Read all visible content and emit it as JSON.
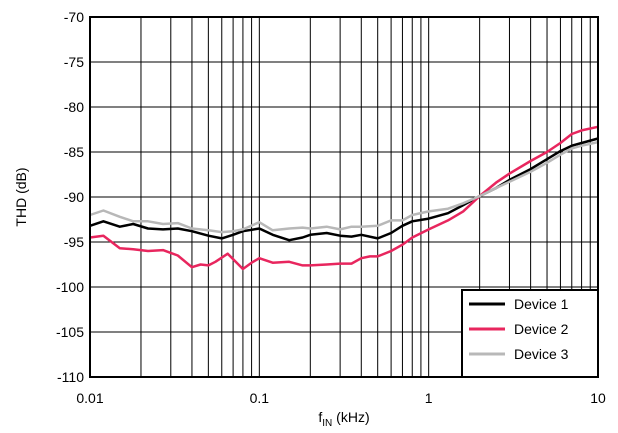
{
  "chart_data": {
    "type": "line",
    "xscale": "log",
    "xlim": [
      0.01,
      10
    ],
    "ylim": [
      -110,
      -70
    ],
    "xlabel": {
      "main": "f",
      "sub": "IN",
      "rest": " (kHz)"
    },
    "ylabel": "THD (dB)",
    "x_ticks": [
      {
        "value": 0.01,
        "label": "0.01"
      },
      {
        "value": 0.1,
        "label": "0.1"
      },
      {
        "value": 1,
        "label": "1"
      },
      {
        "value": 10,
        "label": "10"
      }
    ],
    "y_ticks": [
      {
        "value": -70,
        "label": "-70"
      },
      {
        "value": -75,
        "label": "-75"
      },
      {
        "value": -80,
        "label": "-80"
      },
      {
        "value": -85,
        "label": "-85"
      },
      {
        "value": -90,
        "label": "-90"
      },
      {
        "value": -95,
        "label": "-95"
      },
      {
        "value": -100,
        "label": "-100"
      },
      {
        "value": -105,
        "label": "-105"
      },
      {
        "value": -110,
        "label": "-110"
      }
    ],
    "grid": true,
    "legend_position": "bottom-right",
    "series": [
      {
        "name": "Device 1",
        "color": "#000000",
        "x": [
          0.01,
          0.012,
          0.015,
          0.018,
          0.022,
          0.027,
          0.033,
          0.04,
          0.05,
          0.06,
          0.07,
          0.08,
          0.1,
          0.12,
          0.15,
          0.18,
          0.2,
          0.25,
          0.3,
          0.35,
          0.4,
          0.5,
          0.6,
          0.7,
          0.8,
          1.0,
          1.3,
          1.6,
          2.0,
          2.5,
          3.0,
          4.0,
          5.0,
          6.0,
          7.0,
          8.0,
          10.0
        ],
        "y": [
          -93.2,
          -92.7,
          -93.3,
          -93.0,
          -93.5,
          -93.6,
          -93.5,
          -93.8,
          -94.3,
          -94.6,
          -94.2,
          -93.8,
          -93.5,
          -94.2,
          -94.8,
          -94.5,
          -94.2,
          -94.0,
          -94.3,
          -94.4,
          -94.2,
          -94.6,
          -94.0,
          -93.2,
          -92.7,
          -92.4,
          -91.8,
          -90.9,
          -89.9,
          -89.0,
          -88.1,
          -86.9,
          -85.8,
          -84.9,
          -84.3,
          -84.0,
          -83.5
        ]
      },
      {
        "name": "Device 2",
        "color": "#e8265e",
        "x": [
          0.01,
          0.012,
          0.015,
          0.018,
          0.022,
          0.027,
          0.033,
          0.04,
          0.045,
          0.05,
          0.055,
          0.065,
          0.07,
          0.08,
          0.09,
          0.1,
          0.12,
          0.15,
          0.18,
          0.2,
          0.25,
          0.3,
          0.35,
          0.4,
          0.45,
          0.5,
          0.6,
          0.7,
          0.8,
          1.0,
          1.3,
          1.6,
          2.0,
          2.5,
          3.0,
          4.0,
          5.0,
          6.0,
          7.0,
          8.0,
          10.0
        ],
        "y": [
          -94.5,
          -94.3,
          -95.7,
          -95.8,
          -96.0,
          -95.9,
          -96.5,
          -97.8,
          -97.5,
          -97.6,
          -97.2,
          -96.3,
          -96.9,
          -98.0,
          -97.3,
          -96.8,
          -97.3,
          -97.2,
          -97.6,
          -97.6,
          -97.5,
          -97.4,
          -97.4,
          -96.8,
          -96.6,
          -96.6,
          -96.0,
          -95.3,
          -94.5,
          -93.6,
          -92.6,
          -91.6,
          -89.9,
          -88.4,
          -87.4,
          -86.0,
          -85.0,
          -84.0,
          -83.0,
          -82.6,
          -82.2
        ]
      },
      {
        "name": "Device 3",
        "color": "#b8b8b8",
        "x": [
          0.01,
          0.012,
          0.015,
          0.018,
          0.022,
          0.027,
          0.033,
          0.04,
          0.05,
          0.06,
          0.07,
          0.08,
          0.1,
          0.12,
          0.15,
          0.18,
          0.2,
          0.25,
          0.3,
          0.35,
          0.4,
          0.5,
          0.6,
          0.7,
          0.8,
          1.0,
          1.3,
          1.6,
          2.0,
          2.5,
          3.0,
          4.0,
          5.0,
          6.0,
          7.0,
          8.0,
          10.0
        ],
        "y": [
          -92.0,
          -91.5,
          -92.2,
          -92.7,
          -92.7,
          -93.0,
          -92.9,
          -93.5,
          -93.7,
          -93.9,
          -93.8,
          -93.6,
          -92.8,
          -93.7,
          -93.5,
          -93.4,
          -93.5,
          -93.3,
          -93.6,
          -93.3,
          -93.3,
          -93.2,
          -92.6,
          -92.6,
          -92.0,
          -91.6,
          -91.3,
          -90.7,
          -89.9,
          -89.0,
          -88.3,
          -87.2,
          -86.2,
          -85.3,
          -84.6,
          -84.3,
          -83.9
        ]
      }
    ]
  }
}
